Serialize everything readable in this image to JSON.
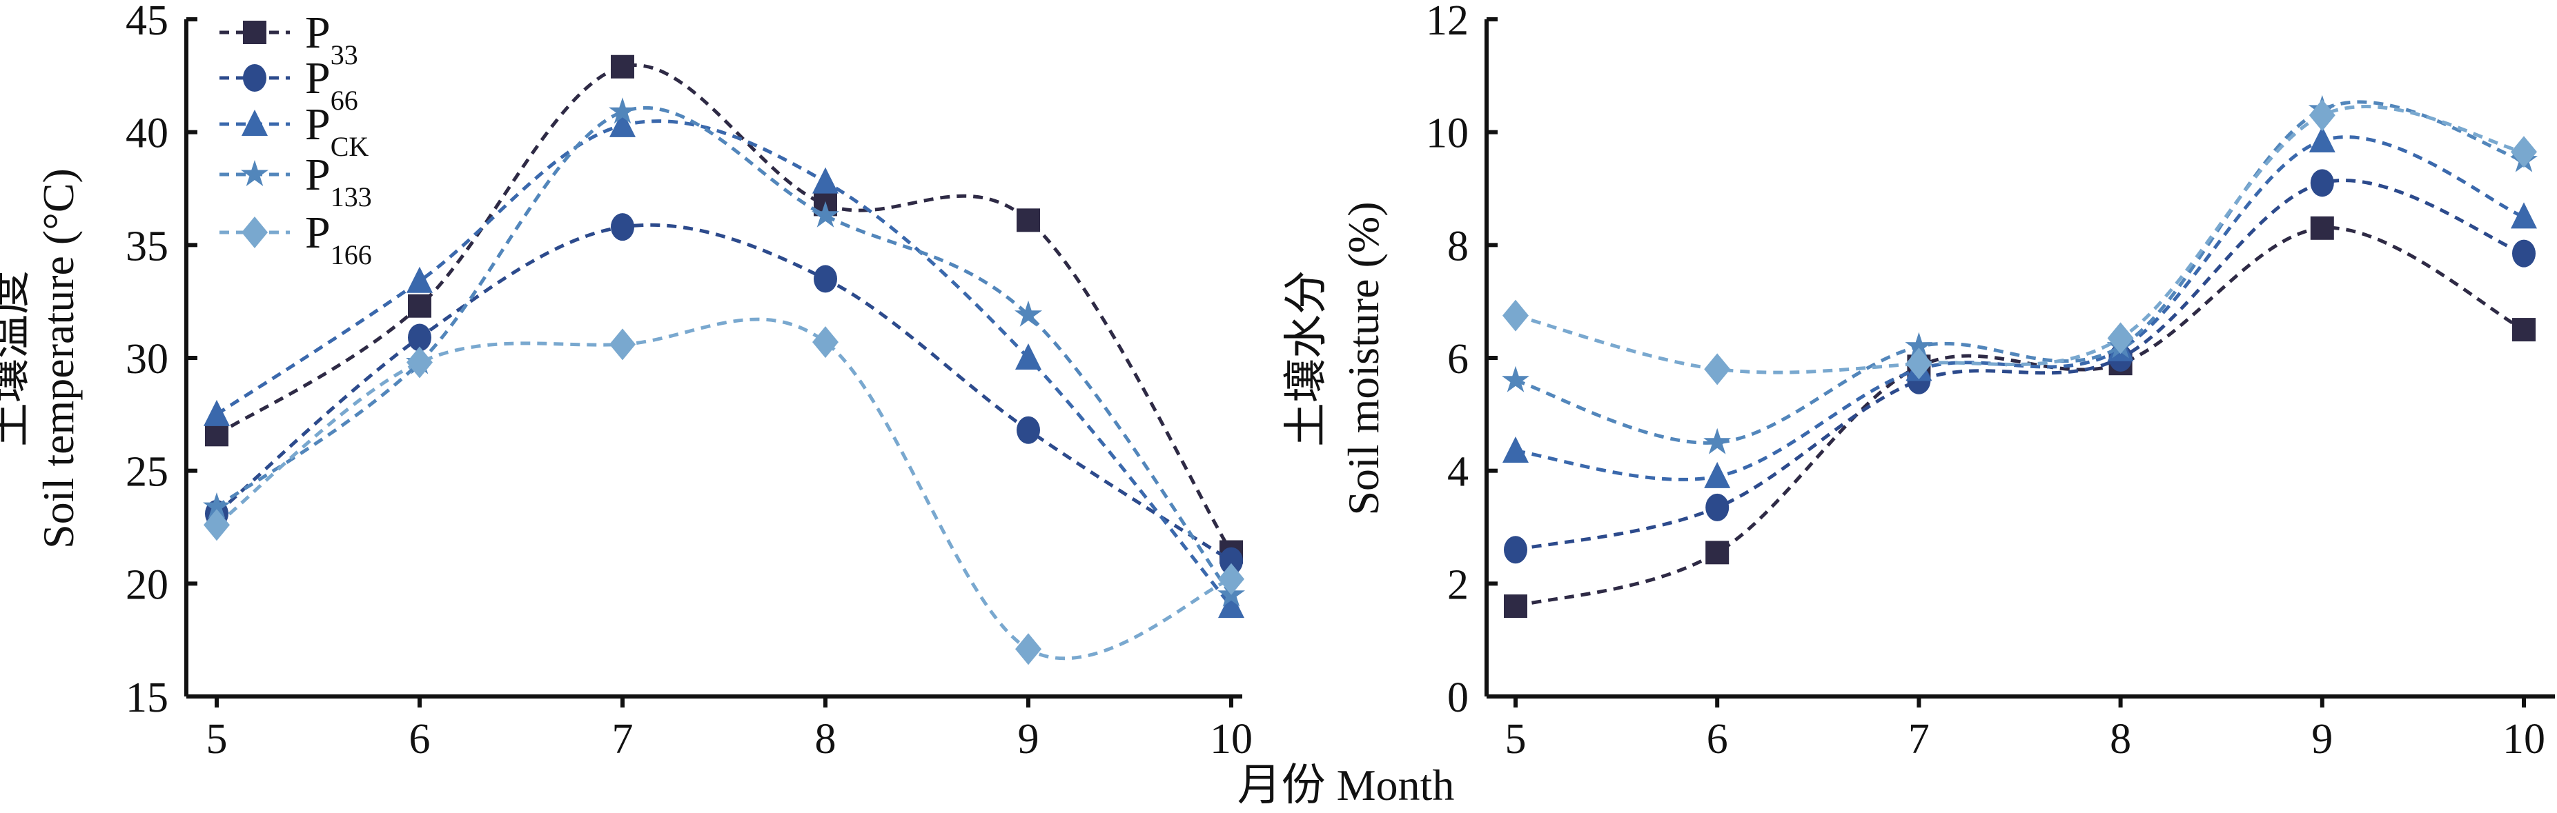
{
  "x_label": "月份 Month",
  "series_meta": [
    {
      "name": "P",
      "sub": "33",
      "marker": "square",
      "color": "#2e2a45"
    },
    {
      "name": "P",
      "sub": "66",
      "marker": "circle",
      "color": "#2c4a8c"
    },
    {
      "name": "P",
      "sub": "CK",
      "marker": "triangle",
      "color": "#3a68ac"
    },
    {
      "name": "P",
      "sub": "133",
      "marker": "star",
      "color": "#5286bb"
    },
    {
      "name": "P",
      "sub": "166",
      "marker": "diamond",
      "color": "#79a8cf"
    }
  ],
  "chart_data": [
    {
      "type": "line",
      "ylabel_cn": "土壤温度",
      "ylabel": "Soil temperature (°C)",
      "x": [
        5,
        6,
        7,
        8,
        9,
        10
      ],
      "ylim": [
        15,
        45
      ],
      "yticks": [
        15,
        20,
        25,
        30,
        35,
        40,
        45
      ],
      "legend": "top-left",
      "series": [
        {
          "name": "P33",
          "values": [
            26.6,
            32.3,
            42.9,
            36.8,
            36.1,
            21.4
          ]
        },
        {
          "name": "P66",
          "values": [
            23.1,
            30.9,
            35.8,
            33.5,
            26.8,
            21.0
          ]
        },
        {
          "name": "PCK",
          "values": [
            27.5,
            33.4,
            40.3,
            37.8,
            30.0,
            19.0
          ]
        },
        {
          "name": "P133",
          "values": [
            23.4,
            29.8,
            40.9,
            36.3,
            31.9,
            19.5
          ]
        },
        {
          "name": "P166",
          "values": [
            22.6,
            29.8,
            30.6,
            30.7,
            17.1,
            20.2
          ]
        }
      ]
    },
    {
      "type": "line",
      "ylabel_cn": "土壤水分",
      "ylabel": "Soil moisture (%)",
      "x": [
        5,
        6,
        7,
        8,
        9,
        10
      ],
      "ylim": [
        0,
        12
      ],
      "yticks": [
        0,
        2,
        4,
        6,
        8,
        10,
        12
      ],
      "series": [
        {
          "name": "P33",
          "values": [
            1.6,
            2.55,
            5.85,
            5.9,
            8.3,
            6.5
          ]
        },
        {
          "name": "P66",
          "values": [
            2.6,
            3.35,
            5.6,
            6.0,
            9.1,
            7.85
          ]
        },
        {
          "name": "PCK",
          "values": [
            4.35,
            3.9,
            5.8,
            6.15,
            9.85,
            8.5
          ]
        },
        {
          "name": "P133",
          "values": [
            5.6,
            4.5,
            6.2,
            6.2,
            10.4,
            9.5
          ]
        },
        {
          "name": "P166",
          "values": [
            6.75,
            5.8,
            5.9,
            6.35,
            10.3,
            9.65
          ]
        }
      ]
    }
  ]
}
